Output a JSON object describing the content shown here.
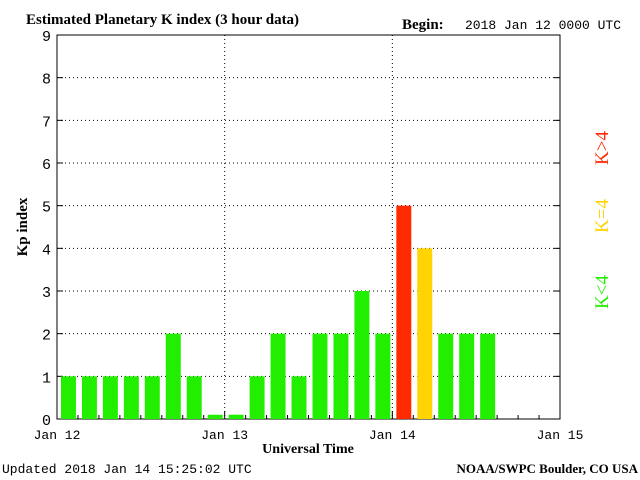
{
  "chart_data": {
    "type": "bar",
    "title": "Estimated Planetary K index (3 hour data)",
    "begin_label": "Begin:",
    "begin_value": "2018 Jan 12 0000 UTC",
    "xlabel": "Universal Time",
    "ylabel": "Kp index",
    "ylim": [
      0,
      9
    ],
    "yticks": [
      "0",
      "1",
      "2",
      "3",
      "4",
      "5",
      "6",
      "7",
      "8",
      "9"
    ],
    "xticks": [
      "Jan 12",
      "Jan 13",
      "Jan 14",
      "Jan 15"
    ],
    "grid": true,
    "values": [
      1,
      1,
      1,
      1,
      1,
      2,
      1,
      0.1,
      0.1,
      1,
      2,
      1,
      2,
      2,
      3,
      2,
      5,
      4,
      2,
      2,
      2
    ],
    "legend": [
      {
        "label": "K<4",
        "color": "#22ee00"
      },
      {
        "label": "K=4",
        "color": "#ffd400"
      },
      {
        "label": "K>4",
        "color": "#ff2a00"
      }
    ],
    "colors": {
      "low": "#22ee00",
      "mid": "#ffd400",
      "high": "#ff2a00"
    }
  },
  "footer": {
    "updated": "Updated 2018 Jan 14 15:25:02 UTC",
    "source": "NOAA/SWPC Boulder, CO USA"
  }
}
